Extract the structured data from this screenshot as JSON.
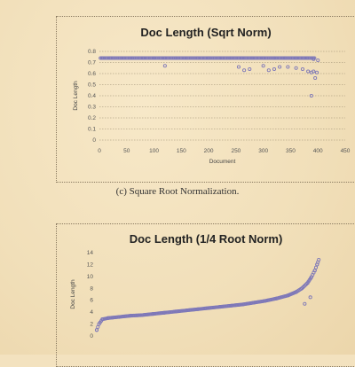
{
  "caption": "(c) Square Root Normalization.",
  "chart_data": [
    {
      "type": "scatter",
      "title": "Doc Length (Sqrt Norm)",
      "xlabel": "Document",
      "ylabel": "Doc Length",
      "xlim": [
        0,
        450
      ],
      "ylim": [
        0,
        0.8
      ],
      "x_ticks": [
        "0",
        "50",
        "100",
        "150",
        "200",
        "250",
        "300",
        "350",
        "400",
        "450"
      ],
      "y_ticks": [
        "0",
        "0.1",
        "0.2",
        "0.3",
        "0.4",
        "0.5",
        "0.6",
        "0.7",
        "0.8"
      ],
      "grid": true,
      "series": [
        {
          "color": "#7e78b8",
          "points": [
            [
              5,
              0.74
            ],
            [
              20,
              0.74
            ],
            [
              40,
              0.74
            ],
            [
              60,
              0.74
            ],
            [
              80,
              0.74
            ],
            [
              100,
              0.74
            ],
            [
              120,
              0.74
            ],
            [
              140,
              0.74
            ],
            [
              160,
              0.74
            ],
            [
              180,
              0.74
            ],
            [
              200,
              0.74
            ],
            [
              220,
              0.74
            ],
            [
              240,
              0.74
            ],
            [
              260,
              0.74
            ],
            [
              280,
              0.74
            ],
            [
              300,
              0.74
            ],
            [
              320,
              0.74
            ],
            [
              340,
              0.74
            ],
            [
              360,
              0.74
            ],
            [
              380,
              0.74
            ],
            [
              392,
              0.73
            ],
            [
              400,
              0.72
            ],
            [
              120,
              0.67
            ],
            [
              255,
              0.66
            ],
            [
              265,
              0.63
            ],
            [
              275,
              0.64
            ],
            [
              300,
              0.67
            ],
            [
              310,
              0.63
            ],
            [
              320,
              0.64
            ],
            [
              330,
              0.66
            ],
            [
              345,
              0.66
            ],
            [
              360,
              0.65
            ],
            [
              372,
              0.64
            ],
            [
              382,
              0.62
            ],
            [
              388,
              0.61
            ],
            [
              392,
              0.62
            ],
            [
              395,
              0.56
            ],
            [
              398,
              0.61
            ],
            [
              388,
              0.4
            ]
          ]
        }
      ]
    },
    {
      "type": "scatter",
      "title": "Doc Length (1/4 Root Norm)",
      "xlabel": "",
      "ylabel": "Doc Length",
      "ylim": [
        0,
        14
      ],
      "y_ticks": [
        "0",
        "2",
        "4",
        "6",
        "8",
        "10",
        "12",
        "14"
      ],
      "grid": false,
      "series": [
        {
          "color": "#7e78b8",
          "points": [
            [
              0,
              1.0
            ],
            [
              4,
              2.0
            ],
            [
              10,
              2.8
            ],
            [
              20,
              3.0
            ],
            [
              40,
              3.2
            ],
            [
              60,
              3.4
            ],
            [
              80,
              3.5
            ],
            [
              100,
              3.7
            ],
            [
              120,
              3.9
            ],
            [
              140,
              4.1
            ],
            [
              160,
              4.3
            ],
            [
              180,
              4.5
            ],
            [
              200,
              4.7
            ],
            [
              220,
              4.9
            ],
            [
              240,
              5.1
            ],
            [
              260,
              5.3
            ],
            [
              280,
              5.6
            ],
            [
              300,
              5.9
            ],
            [
              320,
              6.3
            ],
            [
              340,
              6.8
            ],
            [
              355,
              7.4
            ],
            [
              365,
              8.0
            ],
            [
              375,
              8.9
            ],
            [
              382,
              9.9
            ],
            [
              388,
              11.0
            ],
            [
              392,
              12.0
            ],
            [
              395,
              12.8
            ],
            [
              370,
              5.4
            ],
            [
              380,
              6.5
            ]
          ]
        }
      ]
    }
  ]
}
